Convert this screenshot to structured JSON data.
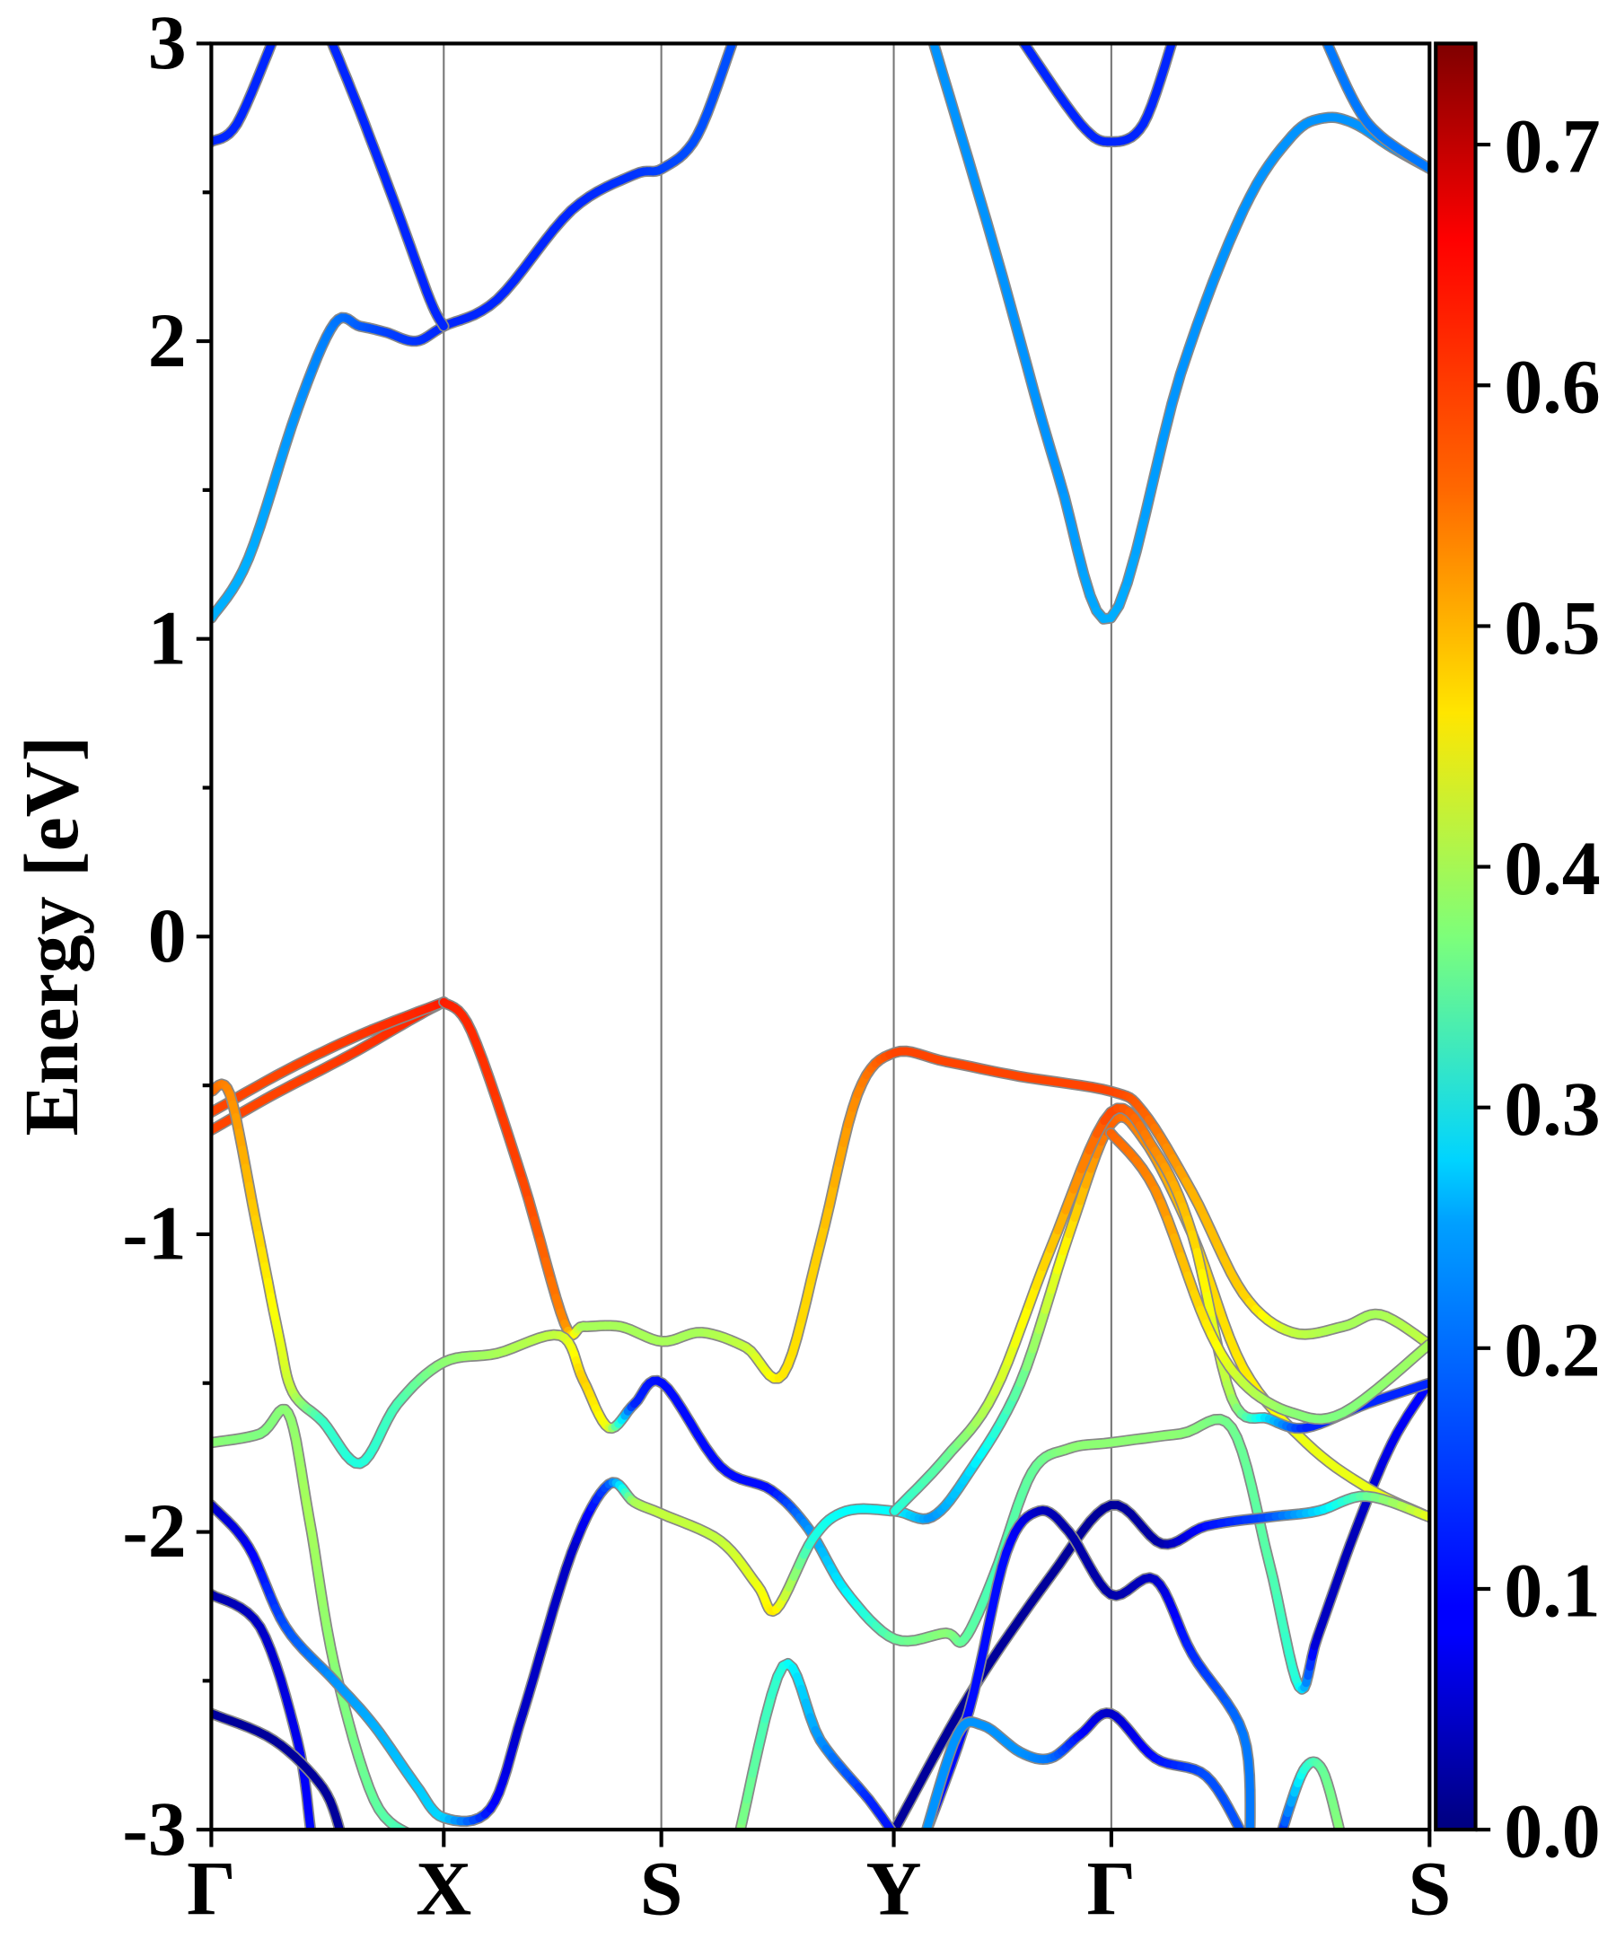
{
  "chart_data": {
    "type": "line",
    "title": "",
    "xlabel": "",
    "ylabel": "Energy [eV]",
    "ylim": [
      -3,
      3
    ],
    "yticks": [
      "-3",
      "-2",
      "-1",
      "0",
      "1",
      "2",
      "3"
    ],
    "yticks_values": [
      -3,
      -2,
      -1,
      0,
      1,
      2,
      3
    ],
    "kpoints": [
      {
        "label": "Γ",
        "k": 0
      },
      {
        "label": "X",
        "k": 1
      },
      {
        "label": "S",
        "k": 1.936
      },
      {
        "label": "Y",
        "k": 2.936
      },
      {
        "label": "Γ",
        "k": 3.872
      },
      {
        "label": "S",
        "k": 5.241
      }
    ],
    "xlim": [
      0,
      5.241
    ],
    "colorbar": {
      "colormap": "jet",
      "range": [
        0,
        0.742
      ],
      "ticks": [
        "0.0",
        "0.1",
        "0.2",
        "0.3",
        "0.4",
        "0.5",
        "0.6",
        "0.7"
      ],
      "tick_values": [
        0,
        0.1,
        0.2,
        0.3,
        0.4,
        0.5,
        0.6,
        0.7
      ]
    },
    "band_point_format": [
      "k",
      "energy_eV",
      "weight"
    ],
    "bands": [
      [
        [
          0,
          1.07,
          0.22
        ],
        [
          0.16,
          1.27,
          0.22
        ],
        [
          0.37,
          1.77,
          0.2
        ],
        [
          0.53,
          2.06,
          0.18
        ],
        [
          0.64,
          2.05,
          0.16
        ],
        [
          0.75,
          2.03,
          0.14
        ],
        [
          0.88,
          2.0,
          0.13
        ],
        [
          1,
          2.05,
          0.12
        ],
        [
          1.23,
          2.14,
          0.12
        ],
        [
          1.55,
          2.44,
          0.12
        ],
        [
          1.82,
          2.56,
          0.13
        ],
        [
          1.94,
          2.58,
          0.14
        ],
        [
          2.09,
          2.69,
          0.15
        ],
        [
          2.25,
          3.02,
          0.15
        ]
      ],
      [
        [
          0.51,
          3.02,
          0.12
        ],
        [
          0.64,
          2.77,
          0.12
        ],
        [
          0.8,
          2.44,
          0.12
        ],
        [
          0.94,
          2.14,
          0.12
        ],
        [
          1,
          2.05,
          0.12
        ]
      ],
      [
        [
          0,
          2.67,
          0.12
        ],
        [
          0.11,
          2.73,
          0.12
        ],
        [
          0.27,
          3.02,
          0.12
        ]
      ],
      [
        [
          3.1,
          3.02,
          0.2
        ],
        [
          3.37,
          2.31,
          0.2
        ],
        [
          3.64,
          1.56,
          0.2
        ],
        [
          3.87,
          1.07,
          0.22
        ],
        [
          4.17,
          1.89,
          0.2
        ],
        [
          4.44,
          2.44,
          0.2
        ],
        [
          4.65,
          2.69,
          0.2
        ],
        [
          4.79,
          2.75,
          0.2
        ],
        [
          4.92,
          2.73,
          0.2
        ],
        [
          5.08,
          2.65,
          0.2
        ],
        [
          5.24,
          2.58,
          0.2
        ]
      ],
      [
        [
          3.48,
          3.02,
          0.12
        ],
        [
          3.74,
          2.73,
          0.12
        ],
        [
          3.87,
          2.67,
          0.12
        ],
        [
          4.01,
          2.73,
          0.12
        ],
        [
          4.14,
          3.02,
          0.12
        ]
      ],
      [
        [
          4.79,
          3.02,
          0.18
        ],
        [
          4.92,
          2.8,
          0.18
        ],
        [
          5.03,
          2.69,
          0.18
        ],
        [
          5.24,
          2.58,
          0.18
        ]
      ],
      [
        [
          0,
          -0.65,
          0.6
        ],
        [
          0.27,
          -0.53,
          0.6
        ],
        [
          0.59,
          -0.4,
          0.61
        ],
        [
          0.88,
          -0.27,
          0.62
        ],
        [
          1,
          -0.22,
          0.63
        ]
      ],
      [
        [
          0,
          -0.59,
          0.6
        ],
        [
          0.32,
          -0.45,
          0.6
        ],
        [
          0.64,
          -0.33,
          0.61
        ],
        [
          1,
          -0.22,
          0.63
        ]
      ],
      [
        [
          1,
          -0.22,
          0.63
        ],
        [
          1.12,
          -0.32,
          0.62
        ],
        [
          1.34,
          -0.82,
          0.6
        ],
        [
          1.52,
          -1.3,
          0.55
        ],
        [
          1.6,
          -1.31,
          0.4
        ],
        [
          1.76,
          -1.31,
          0.4
        ],
        [
          1.94,
          -1.36,
          0.4
        ],
        [
          2.11,
          -1.33,
          0.4
        ],
        [
          2.3,
          -1.38,
          0.42
        ],
        [
          2.46,
          -1.47,
          0.48
        ],
        [
          2.62,
          -1.03,
          0.5
        ],
        [
          2.78,
          -0.53,
          0.55
        ],
        [
          2.94,
          -0.39,
          0.6
        ],
        [
          3.16,
          -0.42,
          0.6
        ],
        [
          3.48,
          -0.47,
          0.6
        ],
        [
          3.87,
          -0.52,
          0.6
        ],
        [
          4.01,
          -0.59,
          0.58
        ],
        [
          4.22,
          -0.86,
          0.52
        ],
        [
          4.44,
          -1.2,
          0.5
        ],
        [
          4.65,
          -1.33,
          0.42
        ],
        [
          4.87,
          -1.31,
          0.4
        ],
        [
          5.03,
          -1.27,
          0.4
        ],
        [
          5.24,
          -1.37,
          0.42
        ]
      ],
      [
        [
          0,
          -0.52,
          0.58
        ],
        [
          0.08,
          -0.53,
          0.55
        ],
        [
          0.19,
          -0.95,
          0.5
        ],
        [
          0.29,
          -1.34,
          0.45
        ],
        [
          0.35,
          -1.53,
          0.42
        ],
        [
          0.48,
          -1.63,
          0.32
        ],
        [
          0.64,
          -1.77,
          0.3
        ],
        [
          0.8,
          -1.57,
          0.33
        ],
        [
          1,
          -1.43,
          0.38
        ],
        [
          1.23,
          -1.4,
          0.4
        ],
        [
          1.5,
          -1.34,
          0.42
        ],
        [
          1.6,
          -1.49,
          0.5
        ],
        [
          1.71,
          -1.65,
          0.45
        ],
        [
          1.82,
          -1.57,
          0.12
        ],
        [
          1.94,
          -1.5,
          0.1
        ],
        [
          2.19,
          -1.78,
          0.1
        ],
        [
          2.41,
          -1.86,
          0.1
        ],
        [
          2.57,
          -1.99,
          0.2
        ],
        [
          2.73,
          -2.2,
          0.27
        ],
        [
          2.94,
          -2.36,
          0.35
        ],
        [
          3.16,
          -2.34,
          0.38
        ],
        [
          3.24,
          -2.36,
          0.35
        ],
        [
          3.37,
          -2.14,
          0.33
        ],
        [
          3.53,
          -1.8,
          0.35
        ],
        [
          3.69,
          -1.72,
          0.38
        ],
        [
          3.87,
          -1.7,
          0.38
        ],
        [
          4.17,
          -1.67,
          0.38
        ],
        [
          4.39,
          -1.65,
          0.36
        ],
        [
          4.55,
          -2.1,
          0.34
        ],
        [
          4.68,
          -2.52,
          0.3
        ],
        [
          4.76,
          -2.35,
          0.05
        ],
        [
          4.92,
          -2.0,
          0.04
        ],
        [
          5.08,
          -1.7,
          0.08
        ],
        [
          5.24,
          -1.5,
          0.1
        ]
      ],
      [
        [
          0,
          -1.7,
          0.38
        ],
        [
          0.21,
          -1.67,
          0.37
        ],
        [
          0.33,
          -1.6,
          0.38
        ],
        [
          0.42,
          -1.95,
          0.4
        ],
        [
          0.53,
          -2.45,
          0.38
        ],
        [
          0.7,
          -2.9,
          0.35
        ],
        [
          0.86,
          -3.02,
          0.32
        ]
      ],
      [
        [
          0,
          -1.91,
          0.05
        ],
        [
          0.16,
          -2.05,
          0.08
        ],
        [
          0.32,
          -2.32,
          0.15
        ],
        [
          0.53,
          -2.5,
          0.2
        ],
        [
          0.7,
          -2.65,
          0.22
        ],
        [
          0.88,
          -2.85,
          0.24
        ],
        [
          1,
          -2.96,
          0.25
        ],
        [
          1.2,
          -2.93,
          0.1
        ],
        [
          1.34,
          -2.61,
          0.05
        ],
        [
          1.55,
          -2.07,
          0.05
        ],
        [
          1.71,
          -1.84,
          0.15
        ],
        [
          1.82,
          -1.9,
          0.4
        ],
        [
          1.94,
          -1.94,
          0.42
        ],
        [
          2.19,
          -2.03,
          0.42
        ],
        [
          2.35,
          -2.18,
          0.45
        ],
        [
          2.43,
          -2.26,
          0.48
        ],
        [
          2.59,
          -2.02,
          0.3
        ],
        [
          2.73,
          -1.93,
          0.28
        ],
        [
          2.94,
          -1.93,
          0.28
        ],
        [
          3.1,
          -1.95,
          0.2
        ],
        [
          3.26,
          -1.8,
          0.25
        ],
        [
          3.48,
          -1.5,
          0.35
        ],
        [
          3.69,
          -1.0,
          0.48
        ],
        [
          3.87,
          -0.63,
          0.58
        ],
        [
          4.01,
          -0.68,
          0.55
        ],
        [
          4.22,
          -1.0,
          0.5
        ],
        [
          4.44,
          -1.45,
          0.48
        ],
        [
          4.71,
          -1.7,
          0.45
        ],
        [
          4.97,
          -1.85,
          0.45
        ],
        [
          5.24,
          -1.95,
          0.45
        ]
      ],
      [
        [
          2.94,
          -1.93,
          0.3
        ],
        [
          3.16,
          -1.75,
          0.35
        ],
        [
          3.37,
          -1.53,
          0.42
        ],
        [
          3.61,
          -1.05,
          0.5
        ],
        [
          3.87,
          -0.59,
          0.6
        ],
        [
          4.06,
          -0.72,
          0.55
        ],
        [
          4.22,
          -1.0,
          0.5
        ],
        [
          4.39,
          -1.55,
          0.4
        ],
        [
          4.55,
          -1.62,
          0.25
        ],
        [
          4.71,
          -1.65,
          0.12
        ],
        [
          4.97,
          -1.57,
          0.12
        ],
        [
          5.24,
          -1.5,
          0.12
        ]
      ],
      [
        [
          3.87,
          -0.66,
          0.58
        ],
        [
          4.06,
          -0.85,
          0.55
        ],
        [
          4.28,
          -1.3,
          0.48
        ],
        [
          4.44,
          -1.5,
          0.42
        ],
        [
          4.65,
          -1.6,
          0.38
        ],
        [
          4.87,
          -1.6,
          0.37
        ],
        [
          5.24,
          -1.37,
          0.4
        ]
      ],
      [
        [
          2.94,
          -3.0,
          0.02
        ],
        [
          3.26,
          -2.55,
          0.02
        ],
        [
          3.61,
          -2.15,
          0.02
        ],
        [
          3.87,
          -1.91,
          0.02
        ],
        [
          4.09,
          -2.04,
          0.03
        ],
        [
          4.28,
          -1.98,
          0.1
        ],
        [
          4.55,
          -1.95,
          0.15
        ],
        [
          4.76,
          -1.93,
          0.25
        ],
        [
          4.97,
          -1.88,
          0.35
        ],
        [
          5.24,
          -1.95,
          0.45
        ]
      ],
      [
        [
          3.07,
          -3.02,
          0.1
        ],
        [
          3.26,
          -2.6,
          0.1
        ],
        [
          3.42,
          -2.07,
          0.1
        ],
        [
          3.56,
          -1.93,
          0.05
        ],
        [
          3.69,
          -2.0,
          0.03
        ],
        [
          3.87,
          -2.21,
          0.03
        ],
        [
          4.06,
          -2.16,
          0.05
        ],
        [
          4.22,
          -2.41,
          0.12
        ],
        [
          4.44,
          -2.68,
          0.18
        ],
        [
          4.47,
          -3.02,
          0.18
        ]
      ],
      [
        [
          3.07,
          -3.02,
          0.2
        ],
        [
          3.21,
          -2.68,
          0.2
        ],
        [
          3.32,
          -2.65,
          0.2
        ],
        [
          3.48,
          -2.74,
          0.2
        ],
        [
          3.61,
          -2.76,
          0.18
        ],
        [
          3.74,
          -2.68,
          0.1
        ],
        [
          3.87,
          -2.61,
          0.05
        ],
        [
          4.06,
          -2.76,
          0.1
        ],
        [
          4.28,
          -2.82,
          0.15
        ],
        [
          4.44,
          -3.02,
          0.15
        ]
      ],
      [
        [
          0,
          -2.21,
          0.03
        ],
        [
          0.21,
          -2.32,
          0.05
        ],
        [
          0.37,
          -2.7,
          0.08
        ],
        [
          0.43,
          -3.02,
          0.1
        ]
      ],
      [
        [
          0,
          -2.61,
          0.02
        ],
        [
          0.27,
          -2.7,
          0.02
        ],
        [
          0.48,
          -2.86,
          0.02
        ],
        [
          0.56,
          -3.02,
          0.02
        ]
      ],
      [
        [
          2.27,
          -3.02,
          0.38
        ],
        [
          2.46,
          -2.45,
          0.3
        ],
        [
          2.62,
          -2.7,
          0.2
        ],
        [
          2.83,
          -2.9,
          0.12
        ],
        [
          2.94,
          -3.02,
          0.1
        ]
      ],
      [
        [
          4.6,
          -3.02,
          0.1
        ],
        [
          4.7,
          -2.8,
          0.3
        ],
        [
          4.78,
          -2.8,
          0.35
        ],
        [
          4.86,
          -3.02,
          0.38
        ]
      ]
    ]
  }
}
